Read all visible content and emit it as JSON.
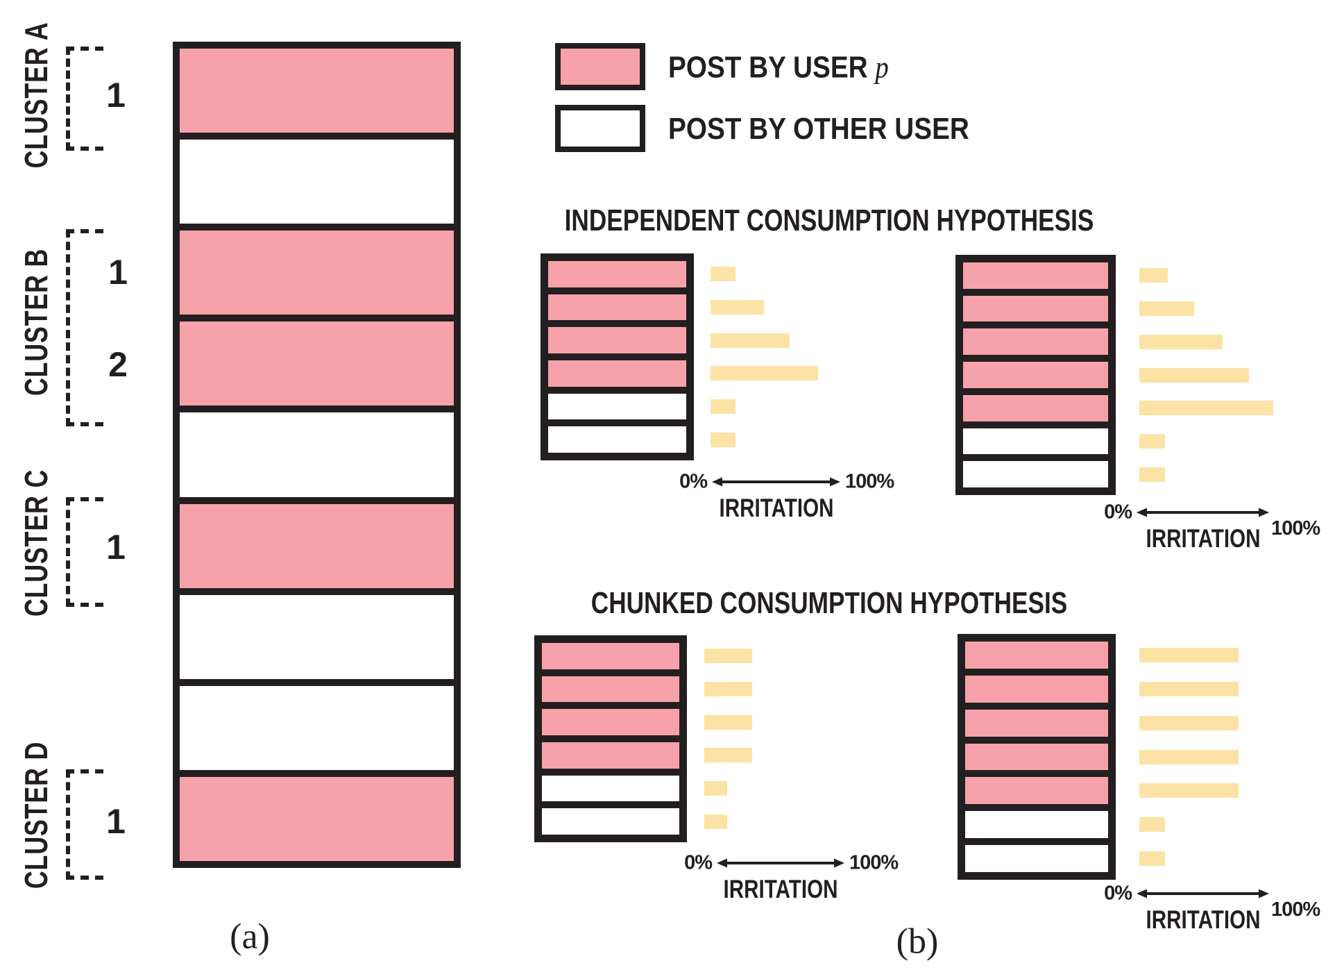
{
  "colors": {
    "post_by_user": "#F7A2AA",
    "post_by_other": "#FFFFFF",
    "irritation_bar": "#FCE2A5",
    "ink": "#231F20",
    "background": "#FFFFFF"
  },
  "captions": {
    "a": "(a)",
    "b": "(b)"
  },
  "legend": {
    "user_label": "POST BY USER",
    "user_variable": "p",
    "other_label": "POST BY OTHER USER"
  },
  "panel_a": {
    "clusters": [
      {
        "name": "CLUSTER A",
        "post_numbers": [
          "1"
        ]
      },
      {
        "name": "CLUSTER B",
        "post_numbers": [
          "1",
          "2"
        ]
      },
      {
        "name": "CLUSTER C",
        "post_numbers": [
          "1"
        ]
      },
      {
        "name": "CLUSTER D",
        "post_numbers": [
          "1"
        ]
      }
    ],
    "feed": [
      "user",
      "other",
      "user",
      "user",
      "other",
      "user",
      "other",
      "other",
      "user"
    ]
  },
  "panel_b": {
    "hypotheses": [
      {
        "title": "INDEPENDENT CONSUMPTION HYPOTHESIS",
        "diagrams": [
          {
            "feed": [
              "user",
              "user",
              "user",
              "user",
              "other",
              "other"
            ],
            "irritation_pct": [
              19,
              41,
              61,
              83,
              19,
              19
            ],
            "axis": {
              "min": "0%",
              "max": "100%",
              "label": "IRRITATION"
            }
          },
          {
            "feed": [
              "user",
              "user",
              "user",
              "user",
              "user",
              "other",
              "other"
            ],
            "irritation_pct": [
              21,
              41,
              62,
              82,
              100,
              19,
              19
            ],
            "axis": {
              "min": "0%",
              "max": "100%",
              "label": "IRRITATION"
            }
          }
        ]
      },
      {
        "title": "CHUNKED CONSUMPTION HYPOTHESIS",
        "diagrams": [
          {
            "feed": [
              "user",
              "user",
              "user",
              "user",
              "other",
              "other"
            ],
            "irritation_pct": [
              37,
              37,
              37,
              37,
              18,
              18
            ],
            "axis": {
              "min": "0%",
              "max": "100%",
              "label": "IRRITATION"
            }
          },
          {
            "feed": [
              "user",
              "user",
              "user",
              "user",
              "user",
              "other",
              "other"
            ],
            "irritation_pct": [
              74,
              74,
              74,
              74,
              74,
              19,
              19
            ],
            "axis": {
              "min": "0%",
              "max": "100%",
              "label": "IRRITATION"
            }
          }
        ]
      }
    ]
  }
}
